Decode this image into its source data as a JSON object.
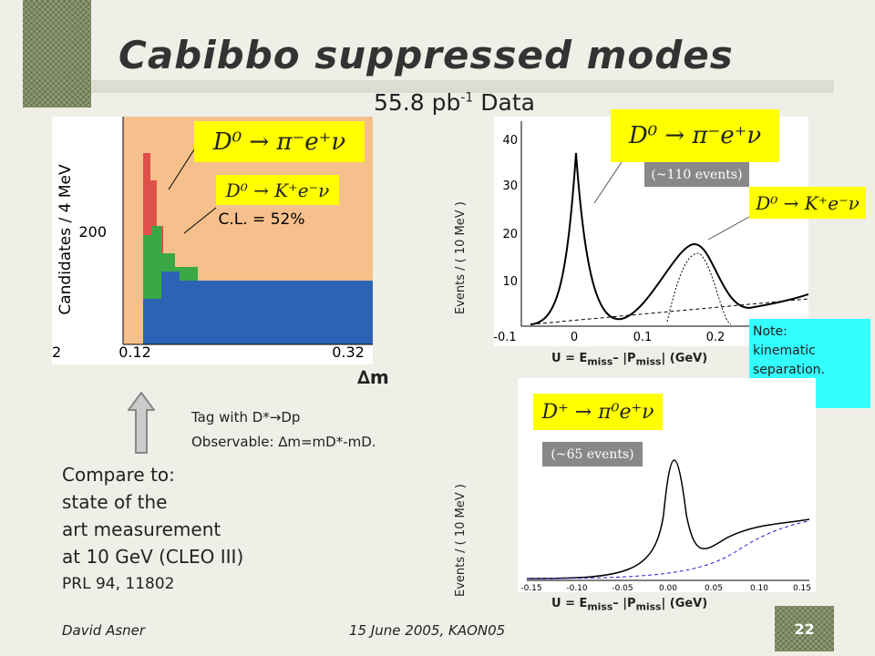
{
  "title": "Cabibbo suppressed modes",
  "subtitle": {
    "main": "55.8 pb",
    "sup": "-1",
    "tail": " Data"
  },
  "left_plot": {
    "y_label": "Candidates / 4 MeV",
    "y_ticks": [
      "200"
    ],
    "x_ticks": [
      "2",
      "0.12",
      "0.32"
    ],
    "cl": "C.L. = 52%",
    "formula_pi": "D⁰ → π⁻e⁺ν",
    "formula_k": "D⁰ → K⁺e⁻ν",
    "x_label": "∆m"
  },
  "tag": [
    "Tag with D*→Dp",
    "Observable: ∆m=mD*-mD."
  ],
  "compare": [
    "Compare to:",
    "state of the",
    "art measurement",
    "at 10 GeV (CLEO III)",
    "PRL 94, 11802"
  ],
  "top_plot": {
    "y_label": "Events / ( 10 MeV )",
    "y_ticks": [
      "40",
      "30",
      "20",
      "10"
    ],
    "x_ticks": [
      "-0.1",
      "0",
      "0.1",
      "0.2"
    ],
    "formula_pi": "D⁰ → π⁻e⁺ν",
    "events": "(~110 events)",
    "formula_k": "D⁰ → K⁺e⁻ν",
    "x_label": [
      "U = E",
      "miss",
      "– |P",
      "miss",
      "| (GeV)"
    ]
  },
  "note": [
    "Note:",
    "kinematic",
    "separation."
  ],
  "bottom_plot": {
    "y_label": "Events / ( 10 MeV )",
    "formula": "D⁺ → π⁰e⁺ν",
    "events": "(~65 events)",
    "x_ticks": [
      "-0.15",
      "-0.10",
      "-0.05",
      "0.00",
      "0.05",
      "0.10",
      "0.15"
    ],
    "x_label": [
      "U = E",
      "miss",
      "– |P",
      "miss",
      "| (GeV)"
    ]
  },
  "footer": {
    "author": "David Asner",
    "date": "15 June 2005, KAON05",
    "page": "22"
  }
}
